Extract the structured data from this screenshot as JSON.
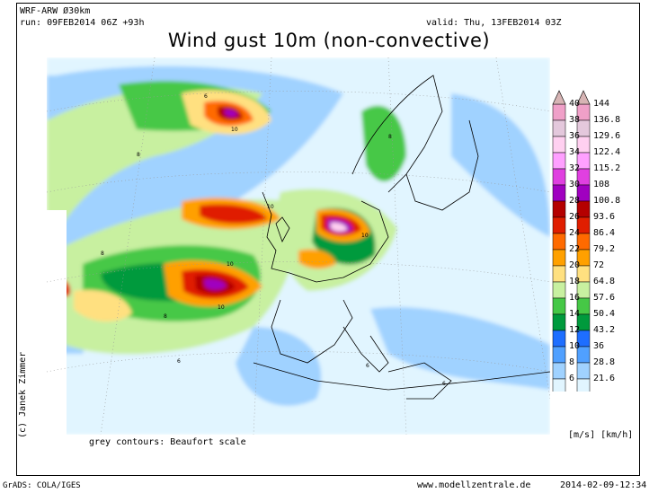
{
  "header": {
    "model": "WRF-ARW  Ø30km",
    "run": "run: 09FEB2014 06Z +93h",
    "valid": "valid: Thu, 13FEB2014 03Z",
    "title": "Wind gust 10m (non-convective)"
  },
  "author": "(c) Janek Zimmer",
  "footer": {
    "contours_note": "grey contours: Beaufort scale",
    "units": "[m/s]  [km/h]",
    "software": "GrADS: COLA/IGES",
    "website": "www.modellzentrale.de",
    "timestamp": "2014-02-09-12:34"
  },
  "legend": {
    "ms": [
      "40",
      "38",
      "36",
      "34",
      "32",
      "30",
      "28",
      "26",
      "24",
      "22",
      "20",
      "18",
      "16",
      "14",
      "12",
      "10",
      "8",
      "6"
    ],
    "kmh": [
      "144",
      "136.8",
      "129.6",
      "122.4",
      "115.2",
      "108",
      "100.8",
      "93.6",
      "86.4",
      "79.2",
      "72",
      "64.8",
      "57.6",
      "50.4",
      "43.2",
      "36",
      "28.8",
      "21.6"
    ],
    "colors": [
      "#f0a0c8",
      "#e4c8dc",
      "#ffd0f0",
      "#ffa0ff",
      "#e040e0",
      "#a000c0",
      "#b40000",
      "#e01e00",
      "#ff6a00",
      "#ffa000",
      "#ffe080",
      "#c8f0a0",
      "#46c846",
      "#009a3c",
      "#1e6eff",
      "#50a0ff",
      "#a0d2ff",
      "#e1f5ff"
    ],
    "top_arrow_color": "#d7b4b4"
  },
  "beaufort_labels": [
    "6",
    "8",
    "10"
  ]
}
